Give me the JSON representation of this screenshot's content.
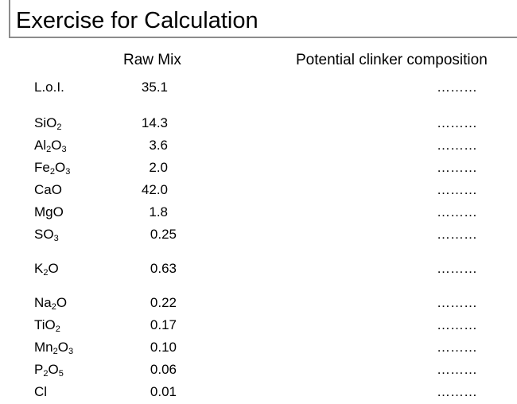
{
  "title": "Exercise for Calculation",
  "headers": {
    "raw_mix": "Raw Mix",
    "potential": "Potential clinker composition"
  },
  "rows": [
    {
      "parts": [
        [
          "L.o.I.",
          ""
        ]
      ],
      "value": "35.1",
      "result": "………"
    },
    {
      "parts": [
        [
          "SiO",
          "2"
        ]
      ],
      "value": "14.3",
      "result": "………"
    },
    {
      "parts": [
        [
          "Al",
          "2"
        ],
        [
          "O",
          "3"
        ]
      ],
      "value": "3.6",
      "result": "………"
    },
    {
      "parts": [
        [
          "Fe",
          "2"
        ],
        [
          "O",
          "3"
        ]
      ],
      "value": "2.0",
      "result": "………"
    },
    {
      "parts": [
        [
          "CaO",
          ""
        ]
      ],
      "value": "42.0",
      "result": "………"
    },
    {
      "parts": [
        [
          "MgO",
          ""
        ]
      ],
      "value": "1.8",
      "result": "………"
    },
    {
      "parts": [
        [
          "SO",
          "3"
        ]
      ],
      "value": "0.25",
      "result": "………"
    },
    {
      "parts": [
        [
          "K",
          "2"
        ],
        [
          "O",
          ""
        ]
      ],
      "value": "0.63",
      "result": "………"
    },
    {
      "parts": [
        [
          "Na",
          "2"
        ],
        [
          "O",
          ""
        ]
      ],
      "value": "0.22",
      "result": "………"
    },
    {
      "parts": [
        [
          "TiO",
          "2"
        ]
      ],
      "value": "0.17",
      "result": "………"
    },
    {
      "parts": [
        [
          "Mn",
          "2"
        ],
        [
          "O",
          "3"
        ]
      ],
      "value": "0.10",
      "result": "………"
    },
    {
      "parts": [
        [
          "P",
          "2"
        ],
        [
          "O",
          "5"
        ]
      ],
      "value": "0.06",
      "result": "………"
    },
    {
      "parts": [
        [
          "Cl",
          ""
        ]
      ],
      "value": "0.01",
      "result": "………"
    }
  ]
}
